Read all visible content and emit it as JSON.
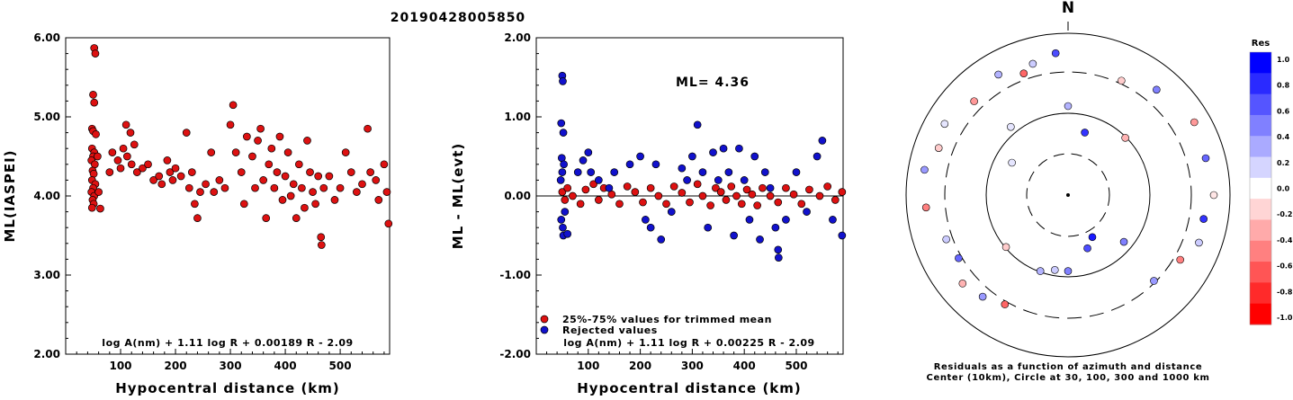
{
  "page_title": "20190428005850",
  "chart_data": [
    {
      "id": "left",
      "type": "scatter",
      "title": "",
      "xlabel": "Hypocentral distance (km)",
      "ylabel": "ML(IASPEI)",
      "xlim": [
        0,
        590
      ],
      "ylim": [
        2.0,
        6.0
      ],
      "xticks": [
        100,
        200,
        300,
        400,
        500
      ],
      "yticks": [
        "2.00",
        "3.00",
        "4.00",
        "5.00",
        "6.00"
      ],
      "equation": "log A(nm) + 1.11 log R + 0.00189 R - 2.09",
      "marker_color": "#dd1111",
      "points": [
        [
          52,
          5.87
        ],
        [
          54,
          5.8
        ],
        [
          50,
          5.28
        ],
        [
          52,
          5.18
        ],
        [
          48,
          4.85
        ],
        [
          50,
          4.82
        ],
        [
          55,
          4.78
        ],
        [
          48,
          4.6
        ],
        [
          52,
          4.55
        ],
        [
          50,
          4.5
        ],
        [
          47,
          4.45
        ],
        [
          53,
          4.4
        ],
        [
          49,
          4.32
        ],
        [
          51,
          4.28
        ],
        [
          48,
          4.2
        ],
        [
          54,
          4.15
        ],
        [
          50,
          4.1
        ],
        [
          47,
          4.05
        ],
        [
          52,
          4.0
        ],
        [
          49,
          3.95
        ],
        [
          51,
          3.9
        ],
        [
          48,
          3.85
        ],
        [
          60,
          4.05
        ],
        [
          63,
          3.84
        ],
        [
          58,
          4.5
        ],
        [
          80,
          4.3
        ],
        [
          85,
          4.55
        ],
        [
          95,
          4.45
        ],
        [
          100,
          4.35
        ],
        [
          105,
          4.6
        ],
        [
          110,
          4.9
        ],
        [
          112,
          4.5
        ],
        [
          118,
          4.8
        ],
        [
          120,
          4.4
        ],
        [
          125,
          4.65
        ],
        [
          130,
          4.3
        ],
        [
          140,
          4.35
        ],
        [
          150,
          4.4
        ],
        [
          160,
          4.2
        ],
        [
          170,
          4.25
        ],
        [
          175,
          4.15
        ],
        [
          185,
          4.45
        ],
        [
          190,
          4.3
        ],
        [
          195,
          4.2
        ],
        [
          200,
          4.35
        ],
        [
          210,
          4.25
        ],
        [
          220,
          4.8
        ],
        [
          225,
          4.1
        ],
        [
          230,
          4.3
        ],
        [
          235,
          3.9
        ],
        [
          240,
          3.72
        ],
        [
          245,
          4.05
        ],
        [
          255,
          4.15
        ],
        [
          265,
          4.55
        ],
        [
          270,
          4.05
        ],
        [
          280,
          4.2
        ],
        [
          290,
          4.1
        ],
        [
          300,
          4.9
        ],
        [
          305,
          5.15
        ],
        [
          310,
          4.55
        ],
        [
          320,
          4.3
        ],
        [
          325,
          3.9
        ],
        [
          330,
          4.75
        ],
        [
          340,
          4.5
        ],
        [
          345,
          4.1
        ],
        [
          350,
          4.7
        ],
        [
          355,
          4.85
        ],
        [
          360,
          4.2
        ],
        [
          365,
          3.72
        ],
        [
          370,
          4.4
        ],
        [
          375,
          4.6
        ],
        [
          380,
          4.1
        ],
        [
          385,
          4.3
        ],
        [
          390,
          4.75
        ],
        [
          395,
          3.95
        ],
        [
          400,
          4.25
        ],
        [
          405,
          4.55
        ],
        [
          410,
          4.0
        ],
        [
          415,
          4.15
        ],
        [
          420,
          3.72
        ],
        [
          425,
          4.4
        ],
        [
          430,
          4.1
        ],
        [
          435,
          3.85
        ],
        [
          440,
          4.7
        ],
        [
          445,
          4.3
        ],
        [
          450,
          4.05
        ],
        [
          455,
          3.9
        ],
        [
          460,
          4.25
        ],
        [
          465,
          3.48
        ],
        [
          466,
          3.38
        ],
        [
          470,
          4.1
        ],
        [
          480,
          4.25
        ],
        [
          490,
          3.95
        ],
        [
          500,
          4.1
        ],
        [
          510,
          4.55
        ],
        [
          520,
          4.3
        ],
        [
          530,
          4.05
        ],
        [
          540,
          4.15
        ],
        [
          550,
          4.85
        ],
        [
          555,
          4.3
        ],
        [
          565,
          4.2
        ],
        [
          570,
          3.95
        ],
        [
          580,
          4.4
        ],
        [
          585,
          4.05
        ],
        [
          588,
          3.65
        ]
      ]
    },
    {
      "id": "middle",
      "type": "scatter",
      "title": "",
      "xlabel": "Hypocentral distance (km)",
      "ylabel": "ML - ML(evt)",
      "xlim": [
        0,
        590
      ],
      "ylim": [
        -2.0,
        2.0
      ],
      "xticks": [
        100,
        200,
        300,
        400,
        500
      ],
      "yticks": [
        "-2.00",
        "-1.00",
        "0.00",
        "1.00",
        "2.00"
      ],
      "ml_label": "ML= 4.36",
      "equation": "log A(nm) + 1.11 log R + 0.00225 R - 2.09",
      "legend": [
        {
          "label": "25%-75% values for trimmed mean",
          "color": "#dd1111"
        },
        {
          "label": "Rejected values",
          "color": "#1111cc"
        }
      ],
      "legend_position": "bottom-left",
      "mean_line": 0.0,
      "red_points": [
        [
          50,
          0.05
        ],
        [
          55,
          -0.05
        ],
        [
          60,
          0.1
        ],
        [
          70,
          0.0
        ],
        [
          85,
          -0.1
        ],
        [
          95,
          0.08
        ],
        [
          110,
          0.15
        ],
        [
          120,
          -0.05
        ],
        [
          130,
          0.1
        ],
        [
          145,
          0.02
        ],
        [
          160,
          -0.1
        ],
        [
          175,
          0.12
        ],
        [
          190,
          0.05
        ],
        [
          205,
          -0.08
        ],
        [
          220,
          0.1
        ],
        [
          235,
          0.0
        ],
        [
          250,
          -0.1
        ],
        [
          265,
          0.12
        ],
        [
          280,
          0.04
        ],
        [
          295,
          -0.08
        ],
        [
          310,
          0.15
        ],
        [
          320,
          0.0
        ],
        [
          335,
          -0.12
        ],
        [
          345,
          0.1
        ],
        [
          355,
          0.05
        ],
        [
          365,
          -0.05
        ],
        [
          375,
          0.12
        ],
        [
          385,
          0.0
        ],
        [
          395,
          -0.1
        ],
        [
          405,
          0.08
        ],
        [
          415,
          0.02
        ],
        [
          425,
          -0.12
        ],
        [
          435,
          0.1
        ],
        [
          450,
          0.0
        ],
        [
          465,
          -0.08
        ],
        [
          480,
          0.1
        ],
        [
          495,
          0.02
        ],
        [
          510,
          -0.1
        ],
        [
          525,
          0.08
        ],
        [
          545,
          0.0
        ],
        [
          560,
          0.12
        ],
        [
          575,
          -0.05
        ],
        [
          588,
          0.05
        ]
      ],
      "blue_points": [
        [
          50,
          1.52
        ],
        [
          51,
          1.45
        ],
        [
          48,
          0.92
        ],
        [
          52,
          0.8
        ],
        [
          49,
          0.48
        ],
        [
          53,
          0.4
        ],
        [
          50,
          0.3
        ],
        [
          47,
          0.2
        ],
        [
          55,
          -0.2
        ],
        [
          48,
          -0.3
        ],
        [
          51,
          -0.4
        ],
        [
          52,
          -0.5
        ],
        [
          60,
          -0.48
        ],
        [
          80,
          0.3
        ],
        [
          90,
          0.45
        ],
        [
          100,
          0.55
        ],
        [
          105,
          0.3
        ],
        [
          120,
          0.2
        ],
        [
          140,
          0.1
        ],
        [
          150,
          0.3
        ],
        [
          180,
          0.4
        ],
        [
          200,
          0.5
        ],
        [
          210,
          -0.3
        ],
        [
          220,
          -0.4
        ],
        [
          230,
          0.4
        ],
        [
          240,
          -0.55
        ],
        [
          260,
          -0.2
        ],
        [
          280,
          0.35
        ],
        [
          290,
          0.2
        ],
        [
          300,
          0.5
        ],
        [
          310,
          0.9
        ],
        [
          320,
          0.3
        ],
        [
          330,
          -0.4
        ],
        [
          340,
          0.55
        ],
        [
          350,
          0.2
        ],
        [
          360,
          0.6
        ],
        [
          370,
          0.3
        ],
        [
          380,
          -0.5
        ],
        [
          390,
          0.6
        ],
        [
          400,
          0.2
        ],
        [
          410,
          -0.3
        ],
        [
          420,
          0.5
        ],
        [
          430,
          -0.55
        ],
        [
          440,
          0.3
        ],
        [
          450,
          0.1
        ],
        [
          460,
          -0.4
        ],
        [
          465,
          -0.68
        ],
        [
          466,
          -0.78
        ],
        [
          480,
          -0.3
        ],
        [
          500,
          0.3
        ],
        [
          520,
          -0.2
        ],
        [
          540,
          0.5
        ],
        [
          550,
          0.7
        ],
        [
          570,
          -0.3
        ],
        [
          588,
          -0.5
        ]
      ]
    },
    {
      "id": "polar",
      "type": "scatter",
      "title": "",
      "north_label": "N",
      "caption_line1": "Residuals as a function of azimuth and distance",
      "caption_line2": "Center (10km), Circle at 30, 100, 300 and 1000 km",
      "colorbar_title": "Res",
      "colorbar_ticks": [
        "1.0",
        "0.8",
        "0.6",
        "0.4",
        "0.2",
        "0.0",
        "-0.2",
        "-0.4",
        "-0.6",
        "-0.8",
        "-1.0"
      ],
      "colorbar_colors": [
        "#0000ff",
        "#2a2aff",
        "#5555ff",
        "#8080ff",
        "#aaaaff",
        "#d5d5ff",
        "#ffffff",
        "#ffd5d5",
        "#ffaaaa",
        "#ff8080",
        "#ff5555",
        "#ff2a2a",
        "#ff0000"
      ],
      "stations": [
        [
          0,
          0.55,
          0.3
        ],
        [
          25,
          0.78,
          -0.2
        ],
        [
          40,
          0.85,
          0.5
        ],
        [
          60,
          0.9,
          -0.4
        ],
        [
          75,
          0.88,
          0.6
        ],
        [
          90,
          0.9,
          -0.1
        ],
        [
          100,
          0.85,
          0.8
        ],
        [
          110,
          0.86,
          0.2
        ],
        [
          120,
          0.8,
          -0.5
        ],
        [
          135,
          0.75,
          0.4
        ],
        [
          150,
          0.3,
          0.9
        ],
        [
          160,
          0.35,
          0.7
        ],
        [
          180,
          0.47,
          0.5
        ],
        [
          190,
          0.47,
          0.2
        ],
        [
          200,
          0.5,
          0.3
        ],
        [
          210,
          0.78,
          -0.6
        ],
        [
          220,
          0.82,
          0.4
        ],
        [
          230,
          0.85,
          -0.3
        ],
        [
          240,
          0.78,
          0.6
        ],
        [
          250,
          0.8,
          0.2
        ],
        [
          265,
          0.88,
          -0.5
        ],
        [
          280,
          0.9,
          0.4
        ],
        [
          290,
          0.85,
          -0.2
        ],
        [
          300,
          0.88,
          0.1
        ],
        [
          315,
          0.82,
          -0.4
        ],
        [
          320,
          0.55,
          0.1
        ],
        [
          330,
          0.86,
          0.3
        ],
        [
          340,
          0.8,
          -0.6
        ],
        [
          345,
          0.84,
          0.2
        ],
        [
          355,
          0.88,
          0.7
        ],
        [
          15,
          0.4,
          0.8
        ],
        [
          45,
          0.5,
          -0.3
        ],
        [
          130,
          0.45,
          0.5
        ],
        [
          230,
          0.5,
          -0.2
        ],
        [
          300,
          0.4,
          0.1
        ]
      ]
    }
  ]
}
